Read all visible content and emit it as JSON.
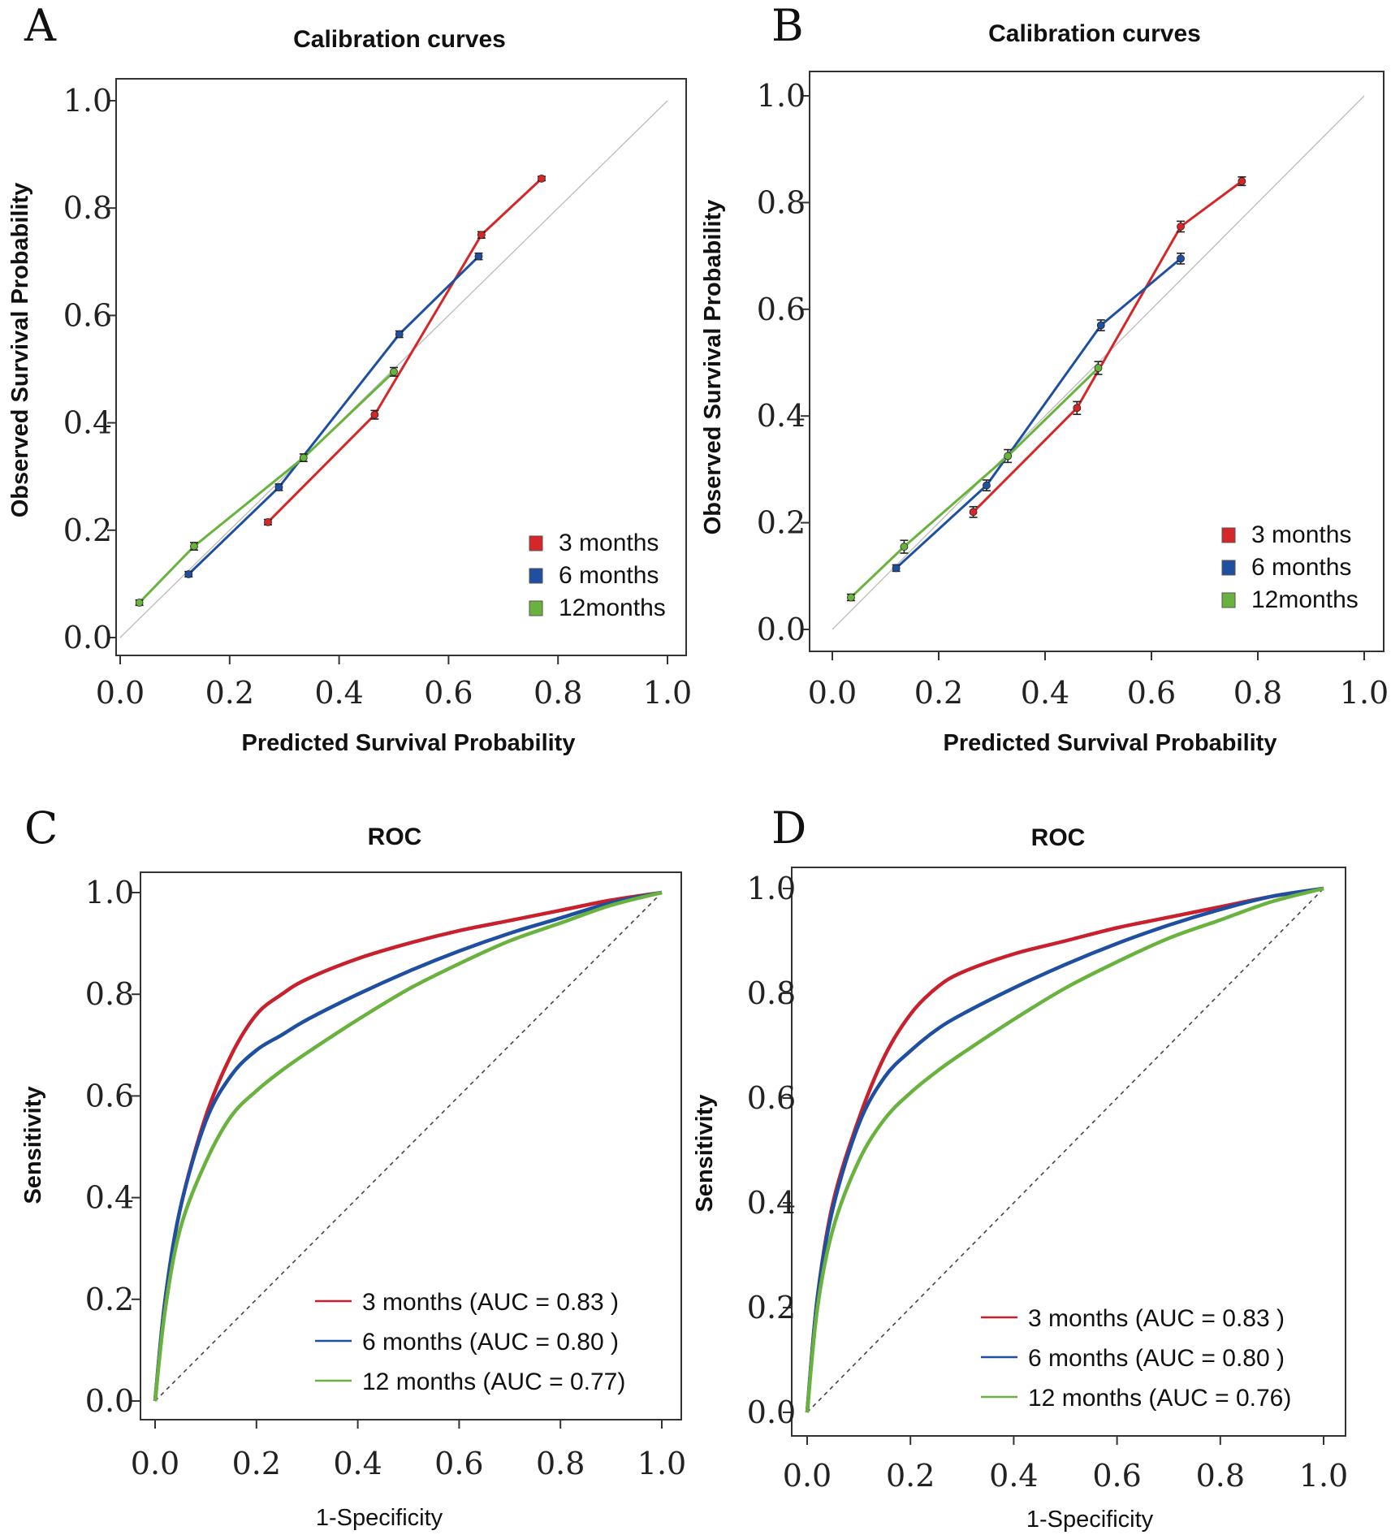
{
  "chart_data": [
    {
      "panel": "A",
      "type": "line",
      "title": "Calibration curves",
      "xlabel": "Predicted Survival Probability",
      "ylabel": "Observed  Survival Probability",
      "xlim": [
        0,
        1
      ],
      "ylim": [
        0,
        1
      ],
      "xticks": [
        "0.0",
        "0.2",
        "0.4",
        "0.6",
        "0.8",
        "1.0"
      ],
      "yticks": [
        "0.0",
        "0.2",
        "0.4",
        "0.6",
        "0.8",
        "1.0"
      ],
      "legend_position": "bottom-right",
      "series": [
        {
          "name": "3 months",
          "color": "#d62728",
          "x": [
            0.27,
            0.465,
            0.66,
            0.77
          ],
          "y": [
            0.215,
            0.415,
            0.75,
            0.855
          ],
          "err": [
            0.005,
            0.008,
            0.006,
            0.004
          ]
        },
        {
          "name": "6 months",
          "color": "#1f4fa0",
          "x": [
            0.125,
            0.29,
            0.51,
            0.655
          ],
          "y": [
            0.118,
            0.28,
            0.565,
            0.71
          ],
          "err": [
            0.005,
            0.006,
            0.006,
            0.006
          ]
        },
        {
          "name": "12months",
          "color": "#6ab23e",
          "x": [
            0.035,
            0.135,
            0.335,
            0.5
          ],
          "y": [
            0.065,
            0.17,
            0.335,
            0.495
          ],
          "err": [
            0.005,
            0.007,
            0.007,
            0.008
          ]
        }
      ]
    },
    {
      "panel": "B",
      "type": "line",
      "title": "Calibration curves",
      "xlabel": "Predicted Survival Probability",
      "ylabel": "Observed  Survival Probability",
      "xlim": [
        0,
        1
      ],
      "ylim": [
        0,
        1
      ],
      "xticks": [
        "0.0",
        "0.2",
        "0.4",
        "0.6",
        "0.8",
        "1.0"
      ],
      "yticks": [
        "0.0",
        "0.2",
        "0.4",
        "0.6",
        "0.8",
        "1.0"
      ],
      "legend_position": "bottom-right",
      "series": [
        {
          "name": "3 months",
          "color": "#d62728",
          "x": [
            0.265,
            0.46,
            0.655,
            0.77
          ],
          "y": [
            0.22,
            0.415,
            0.755,
            0.84
          ],
          "err": [
            0.01,
            0.012,
            0.01,
            0.008
          ]
        },
        {
          "name": "6 months",
          "color": "#1f4fa0",
          "x": [
            0.12,
            0.29,
            0.505,
            0.655
          ],
          "y": [
            0.115,
            0.27,
            0.57,
            0.695
          ],
          "err": [
            0.006,
            0.01,
            0.01,
            0.01
          ]
        },
        {
          "name": "12months",
          "color": "#6ab23e",
          "x": [
            0.035,
            0.135,
            0.33,
            0.5
          ],
          "y": [
            0.06,
            0.155,
            0.325,
            0.49
          ],
          "err": [
            0.006,
            0.012,
            0.012,
            0.012
          ]
        }
      ]
    },
    {
      "panel": "C",
      "type": "line",
      "title": "ROC",
      "xlabel": "1-Specificity",
      "ylabel": "Sensitivity",
      "xlim": [
        0,
        1
      ],
      "ylim": [
        0,
        1
      ],
      "xticks": [
        "0.0",
        "0.2",
        "0.4",
        "0.6",
        "0.8",
        "1.0"
      ],
      "yticks": [
        "0.0",
        "0.2",
        "0.4",
        "0.6",
        "0.8",
        "1.0"
      ],
      "legend_position": "bottom-right",
      "series": [
        {
          "name": "3 months (AUC = 0.83 )",
          "color": "#c8202c",
          "x": [
            0,
            0.02,
            0.05,
            0.1,
            0.15,
            0.2,
            0.25,
            0.3,
            0.4,
            0.5,
            0.6,
            0.7,
            0.8,
            0.9,
            1.0
          ],
          "y": [
            0,
            0.2,
            0.38,
            0.56,
            0.68,
            0.76,
            0.8,
            0.83,
            0.87,
            0.9,
            0.925,
            0.945,
            0.965,
            0.985,
            1.0
          ]
        },
        {
          "name": "6 months (AUC = 0.80 )",
          "color": "#1f4fa0",
          "x": [
            0,
            0.02,
            0.05,
            0.1,
            0.15,
            0.2,
            0.25,
            0.3,
            0.4,
            0.5,
            0.6,
            0.7,
            0.8,
            0.9,
            1.0
          ],
          "y": [
            0,
            0.2,
            0.38,
            0.55,
            0.64,
            0.69,
            0.72,
            0.75,
            0.8,
            0.845,
            0.885,
            0.92,
            0.95,
            0.98,
            1.0
          ]
        },
        {
          "name": "12 months (AUC = 0.77)",
          "color": "#6ab23e",
          "x": [
            0,
            0.02,
            0.05,
            0.1,
            0.15,
            0.2,
            0.25,
            0.3,
            0.4,
            0.5,
            0.6,
            0.7,
            0.8,
            0.9,
            1.0
          ],
          "y": [
            0,
            0.18,
            0.34,
            0.47,
            0.56,
            0.61,
            0.65,
            0.685,
            0.75,
            0.81,
            0.86,
            0.905,
            0.94,
            0.975,
            1.0
          ]
        }
      ]
    },
    {
      "panel": "D",
      "type": "line",
      "title": "ROC",
      "xlabel": "1-Specificity",
      "ylabel": "Sensitivity",
      "xlim": [
        0,
        1
      ],
      "ylim": [
        0,
        1
      ],
      "xticks": [
        "0.0",
        "0.2",
        "0.4",
        "0.6",
        "0.8",
        "1.0"
      ],
      "yticks": [
        "0.0",
        "0.2",
        "0.4",
        "0.6",
        "0.8",
        "1.0"
      ],
      "legend_position": "bottom-right",
      "series": [
        {
          "name": "3 months (AUC = 0.83 )",
          "color": "#c8202c",
          "x": [
            0,
            0.02,
            0.05,
            0.1,
            0.15,
            0.2,
            0.25,
            0.3,
            0.4,
            0.5,
            0.6,
            0.7,
            0.8,
            0.9,
            1.0
          ],
          "y": [
            0,
            0.22,
            0.4,
            0.56,
            0.68,
            0.76,
            0.81,
            0.84,
            0.875,
            0.9,
            0.925,
            0.945,
            0.965,
            0.985,
            1.0
          ]
        },
        {
          "name": "6 months (AUC = 0.80 )",
          "color": "#1f4fa0",
          "x": [
            0,
            0.02,
            0.05,
            0.1,
            0.15,
            0.2,
            0.25,
            0.3,
            0.4,
            0.5,
            0.6,
            0.7,
            0.8,
            0.9,
            1.0
          ],
          "y": [
            0,
            0.22,
            0.39,
            0.55,
            0.64,
            0.69,
            0.73,
            0.76,
            0.81,
            0.855,
            0.895,
            0.93,
            0.96,
            0.985,
            1.0
          ]
        },
        {
          "name": "12 months (AUC = 0.76)",
          "color": "#6ab23e",
          "x": [
            0,
            0.02,
            0.05,
            0.1,
            0.15,
            0.2,
            0.25,
            0.3,
            0.4,
            0.5,
            0.6,
            0.7,
            0.8,
            0.9,
            1.0
          ],
          "y": [
            0,
            0.2,
            0.35,
            0.48,
            0.56,
            0.61,
            0.65,
            0.685,
            0.75,
            0.81,
            0.86,
            0.905,
            0.94,
            0.975,
            1.0
          ]
        }
      ]
    }
  ]
}
